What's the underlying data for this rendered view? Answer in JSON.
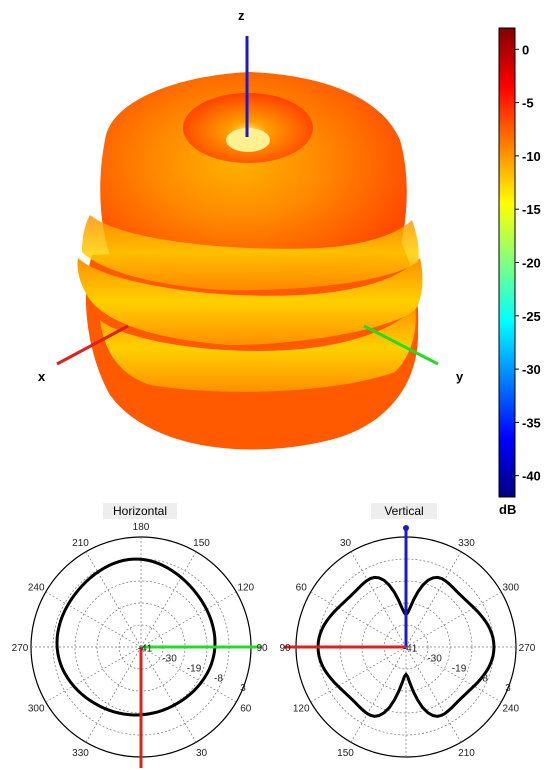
{
  "axes3d": {
    "z": "z",
    "x": "x",
    "y": "y"
  },
  "colorbar": {
    "unit": "dB",
    "ticks": [
      "0",
      "-5",
      "-10",
      "-15",
      "-20",
      "-25",
      "-30",
      "-35",
      "-40"
    ],
    "range": [
      -42,
      2
    ],
    "colors": [
      "#800000",
      "#ff0000",
      "#ff8000",
      "#ffff00",
      "#80ff80",
      "#00ffff",
      "#0080ff",
      "#0000ff",
      "#000080"
    ]
  },
  "horizontal": {
    "title": "Horizontal",
    "angles": [
      {
        "id": "a180",
        "text": "180"
      },
      {
        "id": "a150",
        "text": "150"
      },
      {
        "id": "a120",
        "text": "120"
      },
      {
        "id": "a90",
        "text": "90"
      },
      {
        "id": "a60",
        "text": "60"
      },
      {
        "id": "a30",
        "text": "30"
      },
      {
        "id": "a330",
        "text": "330"
      },
      {
        "id": "a300",
        "text": "300"
      },
      {
        "id": "a270",
        "text": "270"
      },
      {
        "id": "a240",
        "text": "240"
      },
      {
        "id": "a210",
        "text": "210"
      }
    ],
    "rings": [
      "-41",
      "-30",
      "-19",
      "-8",
      "3"
    ]
  },
  "vertical": {
    "title": "Vertical",
    "angles": [
      {
        "id": "v30",
        "text": "30"
      },
      {
        "id": "v330",
        "text": "330"
      },
      {
        "id": "v60",
        "text": "60"
      },
      {
        "id": "v300",
        "text": "300"
      },
      {
        "id": "v90",
        "text": "90"
      },
      {
        "id": "v270",
        "text": "270"
      },
      {
        "id": "v120",
        "text": "120"
      },
      {
        "id": "v240",
        "text": "240"
      },
      {
        "id": "v150",
        "text": "150"
      },
      {
        "id": "v210",
        "text": "210"
      }
    ],
    "rings": [
      "-41",
      "-30",
      "-19",
      "-8",
      "3"
    ]
  },
  "colors": {
    "x_axis": "#dd2020",
    "y_axis": "#22dd22",
    "z_axis": "#1a1acc",
    "pattern": "#000000"
  }
}
